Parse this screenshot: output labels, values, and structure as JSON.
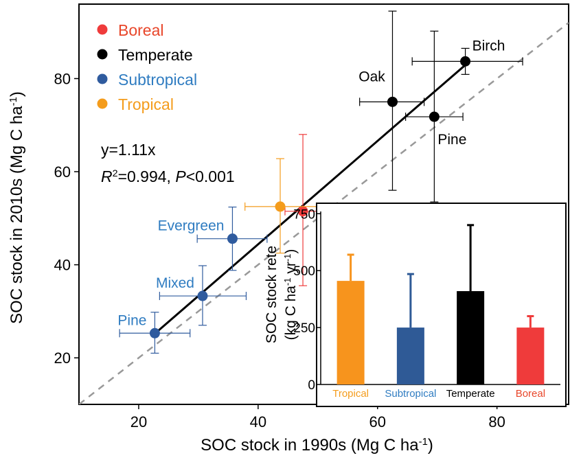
{
  "chart_data": [
    {
      "type": "scatter",
      "xlabel": "SOC stock in 1990s (Mg C ha",
      "xlabel_sup": "-1",
      "xlabel_end": ")",
      "ylabel": "SOC stock in 2010s (Mg C ha",
      "ylabel_sup": "-1",
      "ylabel_end": ")",
      "xlim": [
        10,
        92
      ],
      "ylim": [
        10,
        96
      ],
      "xticks": [
        20,
        40,
        60,
        80
      ],
      "yticks": [
        20,
        40,
        60,
        80
      ],
      "grid": false,
      "legend_position": "top-left",
      "reference_line": {
        "style": "dashed",
        "color": "#999999",
        "x": [
          10,
          92
        ],
        "y": [
          10,
          92
        ]
      },
      "fit_line": {
        "slope": 1.11,
        "x": [
          22.7,
          74.7
        ],
        "color": "#000000"
      },
      "equation": {
        "line1": "y=1.11x",
        "r2_prefix": "R",
        "r2_sup": "2",
        "r2_value": "=0.994, ",
        "p_label": "P",
        "p_value": "<0.001"
      },
      "series": [
        {
          "name": "Boreal",
          "color": "#ef3b3b",
          "label_color": "#e8462a",
          "points": [
            {
              "x": 47.5,
              "y": 51.5,
              "xerr": [
                44.5,
                50.5
              ],
              "yerr": [
                35.5,
                68.0
              ],
              "label": ""
            }
          ]
        },
        {
          "name": "Temperate",
          "color": "#000000",
          "label_color": "#000000",
          "points": [
            {
              "x": 62.5,
              "y": 75.0,
              "xerr": [
                57.0,
                67.8
              ],
              "yerr": [
                56.0,
                94.5
              ],
              "label": "Oak",
              "label_pos": "above-left"
            },
            {
              "x": 69.5,
              "y": 71.8,
              "xerr": [
                64.7,
                74.3
              ],
              "yerr": [
                53.5,
                90.2
              ],
              "label": "Pine",
              "label_pos": "below-right"
            },
            {
              "x": 74.7,
              "y": 83.7,
              "xerr": [
                65.8,
                84.3
              ],
              "yerr": [
                80.9,
                86.5
              ],
              "label": "Birch",
              "label_pos": "above-right"
            }
          ]
        },
        {
          "name": "Subtropical",
          "color": "#2f5b9e",
          "label_color": "#2f7cc1",
          "points": [
            {
              "x": 22.7,
              "y": 25.3,
              "xerr": [
                16.8,
                28.6
              ],
              "yerr": [
                21.0,
                29.8
              ],
              "label": "Pine",
              "label_pos": "left"
            },
            {
              "x": 30.7,
              "y": 33.3,
              "xerr": [
                23.5,
                38.0
              ],
              "yerr": [
                27.0,
                39.8
              ],
              "label": "Mixed",
              "label_pos": "left"
            },
            {
              "x": 35.7,
              "y": 45.6,
              "xerr": [
                29.8,
                41.5
              ],
              "yerr": [
                38.8,
                52.4
              ],
              "label": "Evergreen",
              "label_pos": "left"
            }
          ]
        },
        {
          "name": "Tropical",
          "color": "#f49c1c",
          "label_color": "#f49c1c",
          "points": [
            {
              "x": 43.7,
              "y": 52.5,
              "xerr": [
                37.8,
                49.8
              ],
              "yerr": [
                42.5,
                62.8
              ],
              "label": ""
            }
          ]
        }
      ]
    },
    {
      "type": "bar",
      "ylabel_line1": "SOC stock rete",
      "ylabel_line2_prefix": "(kg C ha",
      "ylabel_line2_sup1": "-1",
      "ylabel_line2_mid": " yr",
      "ylabel_line2_sup2": "-1",
      "ylabel_line2_end": ")",
      "ylim": [
        0,
        790
      ],
      "yticks": [
        0,
        250,
        500,
        750
      ],
      "categories": [
        "Tropical",
        "Subtropical",
        "Temperate",
        "Boreal"
      ],
      "category_colors": [
        "#f49c1c",
        "#2f7cc1",
        "#000000",
        "#e8462a"
      ],
      "values": [
        455,
        250,
        410,
        250
      ],
      "errors_upper": [
        570,
        485,
        700,
        300
      ],
      "colors": [
        "#f7941d",
        "#2f5a96",
        "#000000",
        "#ef3b3b"
      ]
    }
  ]
}
